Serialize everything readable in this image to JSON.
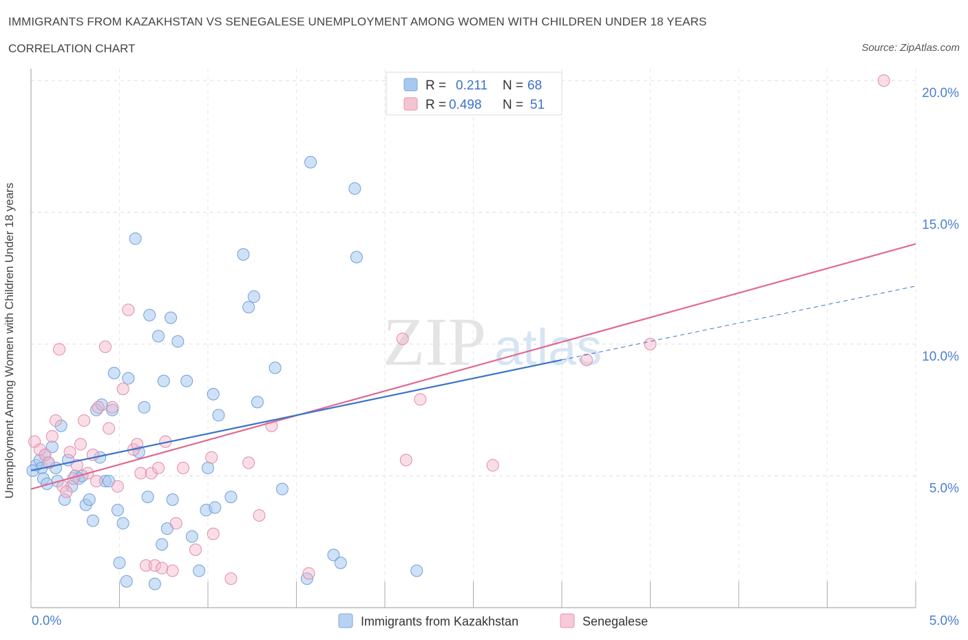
{
  "title": "IMMIGRANTS FROM KAZAKHSTAN VS SENEGALESE UNEMPLOYMENT AMONG WOMEN WITH CHILDREN UNDER 18 YEARS",
  "subtitle": "CORRELATION CHART",
  "source": "Source: ZipAtlas.com",
  "watermark": {
    "zip": "ZIP",
    "atlas": "atlas"
  },
  "colors": {
    "blue": "#a8c8f0",
    "blue_line": "#3a72c8",
    "pink": "#f5b6c9",
    "pink_line": "#e06890",
    "tick": "#4a7fd0"
  },
  "legend_top": [
    {
      "r_label": "R =",
      "r_value": "0.211",
      "n_label": "N =",
      "n_value": "68",
      "color": "blue"
    },
    {
      "r_label": "R =",
      "r_value": "0.498",
      "n_label": "N =",
      "n_value": "51",
      "color": "pink"
    }
  ],
  "chart_data": {
    "type": "scatter",
    "title": "IMMIGRANTS FROM KAZAKHSTAN VS SENEGALESE UNEMPLOYMENT AMONG WOMEN WITH CHILDREN UNDER 18 YEARS",
    "xlabel": "",
    "ylabel": "Unemployment Among Women with Children Under 18 years",
    "xlim": [
      0,
      5
    ],
    "ylim": [
      0,
      20.5
    ],
    "x_ticks": [
      {
        "value": 0,
        "label": "0.0%"
      },
      {
        "value": 5,
        "label": "5.0%"
      }
    ],
    "y_ticks": [
      {
        "value": 5,
        "label": "5.0%"
      },
      {
        "value": 10,
        "label": "10.0%"
      },
      {
        "value": 15,
        "label": "15.0%"
      },
      {
        "value": 20,
        "label": "20.0%"
      }
    ],
    "grid": true,
    "legend_position": "bottom",
    "series": [
      {
        "name": "Immigrants from Kazakhstan",
        "color": "#a8c8f0",
        "points": [
          [
            0.03,
            5.4
          ],
          [
            0.05,
            5.6
          ],
          [
            0.06,
            5.3
          ],
          [
            0.07,
            4.9
          ],
          [
            0.08,
            5.8
          ],
          [
            0.09,
            4.7
          ],
          [
            0.1,
            5.5
          ],
          [
            0.12,
            6.1
          ],
          [
            0.14,
            5.3
          ],
          [
            0.15,
            4.8
          ],
          [
            0.17,
            6.9
          ],
          [
            0.19,
            4.1
          ],
          [
            0.21,
            5.6
          ],
          [
            0.23,
            4.6
          ],
          [
            0.25,
            5.0
          ],
          [
            0.27,
            4.9
          ],
          [
            0.29,
            5.0
          ],
          [
            0.31,
            3.9
          ],
          [
            0.33,
            4.1
          ],
          [
            0.35,
            3.3
          ],
          [
            0.37,
            7.5
          ],
          [
            0.39,
            5.7
          ],
          [
            0.4,
            7.7
          ],
          [
            0.42,
            4.8
          ],
          [
            0.44,
            4.8
          ],
          [
            0.46,
            7.5
          ],
          [
            0.47,
            8.9
          ],
          [
            0.49,
            3.7
          ],
          [
            0.5,
            1.7
          ],
          [
            0.52,
            3.2
          ],
          [
            0.54,
            1.0
          ],
          [
            0.55,
            8.7
          ],
          [
            0.59,
            14.0
          ],
          [
            0.61,
            5.9
          ],
          [
            0.64,
            7.6
          ],
          [
            0.66,
            4.2
          ],
          [
            0.67,
            11.1
          ],
          [
            0.7,
            0.9
          ],
          [
            0.72,
            10.3
          ],
          [
            0.74,
            2.4
          ],
          [
            0.75,
            8.6
          ],
          [
            0.77,
            3.0
          ],
          [
            0.79,
            11.0
          ],
          [
            0.8,
            4.1
          ],
          [
            0.83,
            10.1
          ],
          [
            0.88,
            8.6
          ],
          [
            0.91,
            2.7
          ],
          [
            0.95,
            1.4
          ],
          [
            0.99,
            3.7
          ],
          [
            1.0,
            5.3
          ],
          [
            1.03,
            8.1
          ],
          [
            1.04,
            3.8
          ],
          [
            1.06,
            7.3
          ],
          [
            1.13,
            4.2
          ],
          [
            1.2,
            13.4
          ],
          [
            1.23,
            11.4
          ],
          [
            1.26,
            11.8
          ],
          [
            1.28,
            7.8
          ],
          [
            1.38,
            9.1
          ],
          [
            1.42,
            4.5
          ],
          [
            1.56,
            1.1
          ],
          [
            1.58,
            16.9
          ],
          [
            1.71,
            2.0
          ],
          [
            1.75,
            1.7
          ],
          [
            1.83,
            15.9
          ],
          [
            1.84,
            13.3
          ],
          [
            2.18,
            1.4
          ],
          [
            0.01,
            5.2
          ]
        ]
      },
      {
        "name": "Senegalese",
        "color": "#f5b6c9",
        "points": [
          [
            0.02,
            6.3
          ],
          [
            0.05,
            6.0
          ],
          [
            0.08,
            5.8
          ],
          [
            0.1,
            5.5
          ],
          [
            0.12,
            6.5
          ],
          [
            0.14,
            7.1
          ],
          [
            0.16,
            9.8
          ],
          [
            0.18,
            4.6
          ],
          [
            0.2,
            4.4
          ],
          [
            0.22,
            5.9
          ],
          [
            0.24,
            4.9
          ],
          [
            0.26,
            5.4
          ],
          [
            0.28,
            6.2
          ],
          [
            0.3,
            7.1
          ],
          [
            0.32,
            5.1
          ],
          [
            0.35,
            5.8
          ],
          [
            0.37,
            4.8
          ],
          [
            0.38,
            7.6
          ],
          [
            0.42,
            9.9
          ],
          [
            0.44,
            6.8
          ],
          [
            0.46,
            7.6
          ],
          [
            0.49,
            4.6
          ],
          [
            0.52,
            8.3
          ],
          [
            0.55,
            11.3
          ],
          [
            0.58,
            6.0
          ],
          [
            0.6,
            6.2
          ],
          [
            0.62,
            5.1
          ],
          [
            0.65,
            1.6
          ],
          [
            0.68,
            5.1
          ],
          [
            0.7,
            1.6
          ],
          [
            0.72,
            5.3
          ],
          [
            0.74,
            1.5
          ],
          [
            0.76,
            6.3
          ],
          [
            0.8,
            1.4
          ],
          [
            0.82,
            3.2
          ],
          [
            0.86,
            5.3
          ],
          [
            0.93,
            2.2
          ],
          [
            1.02,
            5.7
          ],
          [
            1.03,
            2.8
          ],
          [
            1.13,
            1.1
          ],
          [
            1.23,
            5.5
          ],
          [
            1.29,
            3.5
          ],
          [
            1.36,
            6.9
          ],
          [
            1.57,
            1.3
          ],
          [
            2.1,
            10.2
          ],
          [
            2.12,
            5.6
          ],
          [
            2.2,
            7.9
          ],
          [
            2.61,
            5.4
          ],
          [
            3.14,
            9.4
          ],
          [
            3.5,
            10.0
          ],
          [
            4.82,
            20.0
          ]
        ]
      }
    ],
    "trend_lines": [
      {
        "series": "Immigrants from Kazakhstan",
        "x": [
          0,
          3
        ],
        "y": [
          5.2,
          9.4
        ],
        "dashed_extension_to_x": 5,
        "dashed_extension_y": 12.2
      },
      {
        "series": "Senegalese",
        "x": [
          0,
          5
        ],
        "y": [
          4.5,
          13.8
        ]
      }
    ]
  }
}
